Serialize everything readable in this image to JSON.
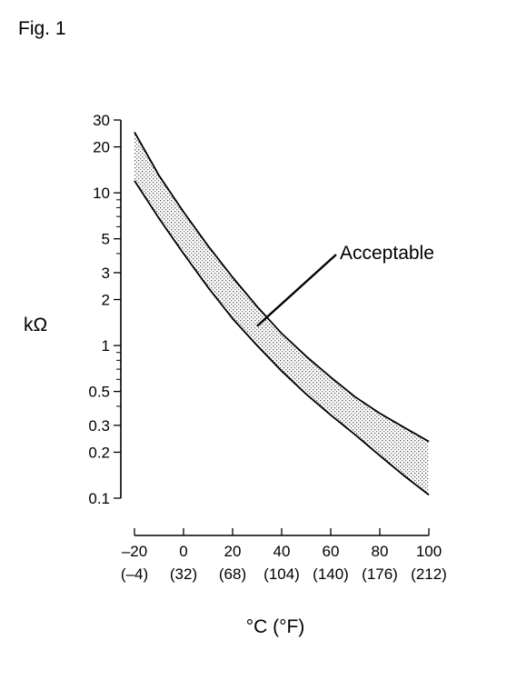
{
  "figure_label": "Fig. 1",
  "chart_data": {
    "type": "area",
    "title": "",
    "ylabel": "kΩ",
    "xlabel": "°C (°F)",
    "y_scale": "log",
    "ylim": [
      0.1,
      30
    ],
    "xlim": [
      -20,
      100
    ],
    "y_ticks_major": [
      {
        "value": 0.1,
        "label": "0.1"
      },
      {
        "value": 0.2,
        "label": "0.2"
      },
      {
        "value": 0.3,
        "label": "0.3"
      },
      {
        "value": 0.5,
        "label": "0.5"
      },
      {
        "value": 1,
        "label": "1"
      },
      {
        "value": 2,
        "label": "2"
      },
      {
        "value": 3,
        "label": "3"
      },
      {
        "value": 5,
        "label": "5"
      },
      {
        "value": 10,
        "label": "10"
      },
      {
        "value": 20,
        "label": "20"
      },
      {
        "value": 30,
        "label": "30"
      }
    ],
    "y_ticks_minor": [
      0.4,
      0.6,
      0.7,
      0.8,
      0.9,
      4,
      6,
      7,
      8,
      9
    ],
    "x_ticks": [
      {
        "value": -20,
        "label": "–20",
        "sublabel": "(–4)"
      },
      {
        "value": 0,
        "label": "0",
        "sublabel": "(32)"
      },
      {
        "value": 20,
        "label": "20",
        "sublabel": "(68)"
      },
      {
        "value": 40,
        "label": "40",
        "sublabel": "(104)"
      },
      {
        "value": 60,
        "label": "60",
        "sublabel": "(140)"
      },
      {
        "value": 80,
        "label": "80",
        "sublabel": "(176)"
      },
      {
        "value": 100,
        "label": "100",
        "sublabel": "(212)"
      }
    ],
    "band": {
      "label": "Acceptable",
      "x": [
        -20,
        -10,
        0,
        10,
        20,
        30,
        40,
        50,
        60,
        70,
        80,
        90,
        100
      ],
      "upper": [
        25,
        13,
        7.5,
        4.5,
        2.8,
        1.8,
        1.2,
        0.85,
        0.62,
        0.46,
        0.36,
        0.29,
        0.235
      ],
      "lower": [
        12,
        6.8,
        4,
        2.4,
        1.5,
        1.0,
        0.68,
        0.48,
        0.35,
        0.26,
        0.19,
        0.14,
        0.105
      ],
      "annotation_x": 30
    }
  }
}
